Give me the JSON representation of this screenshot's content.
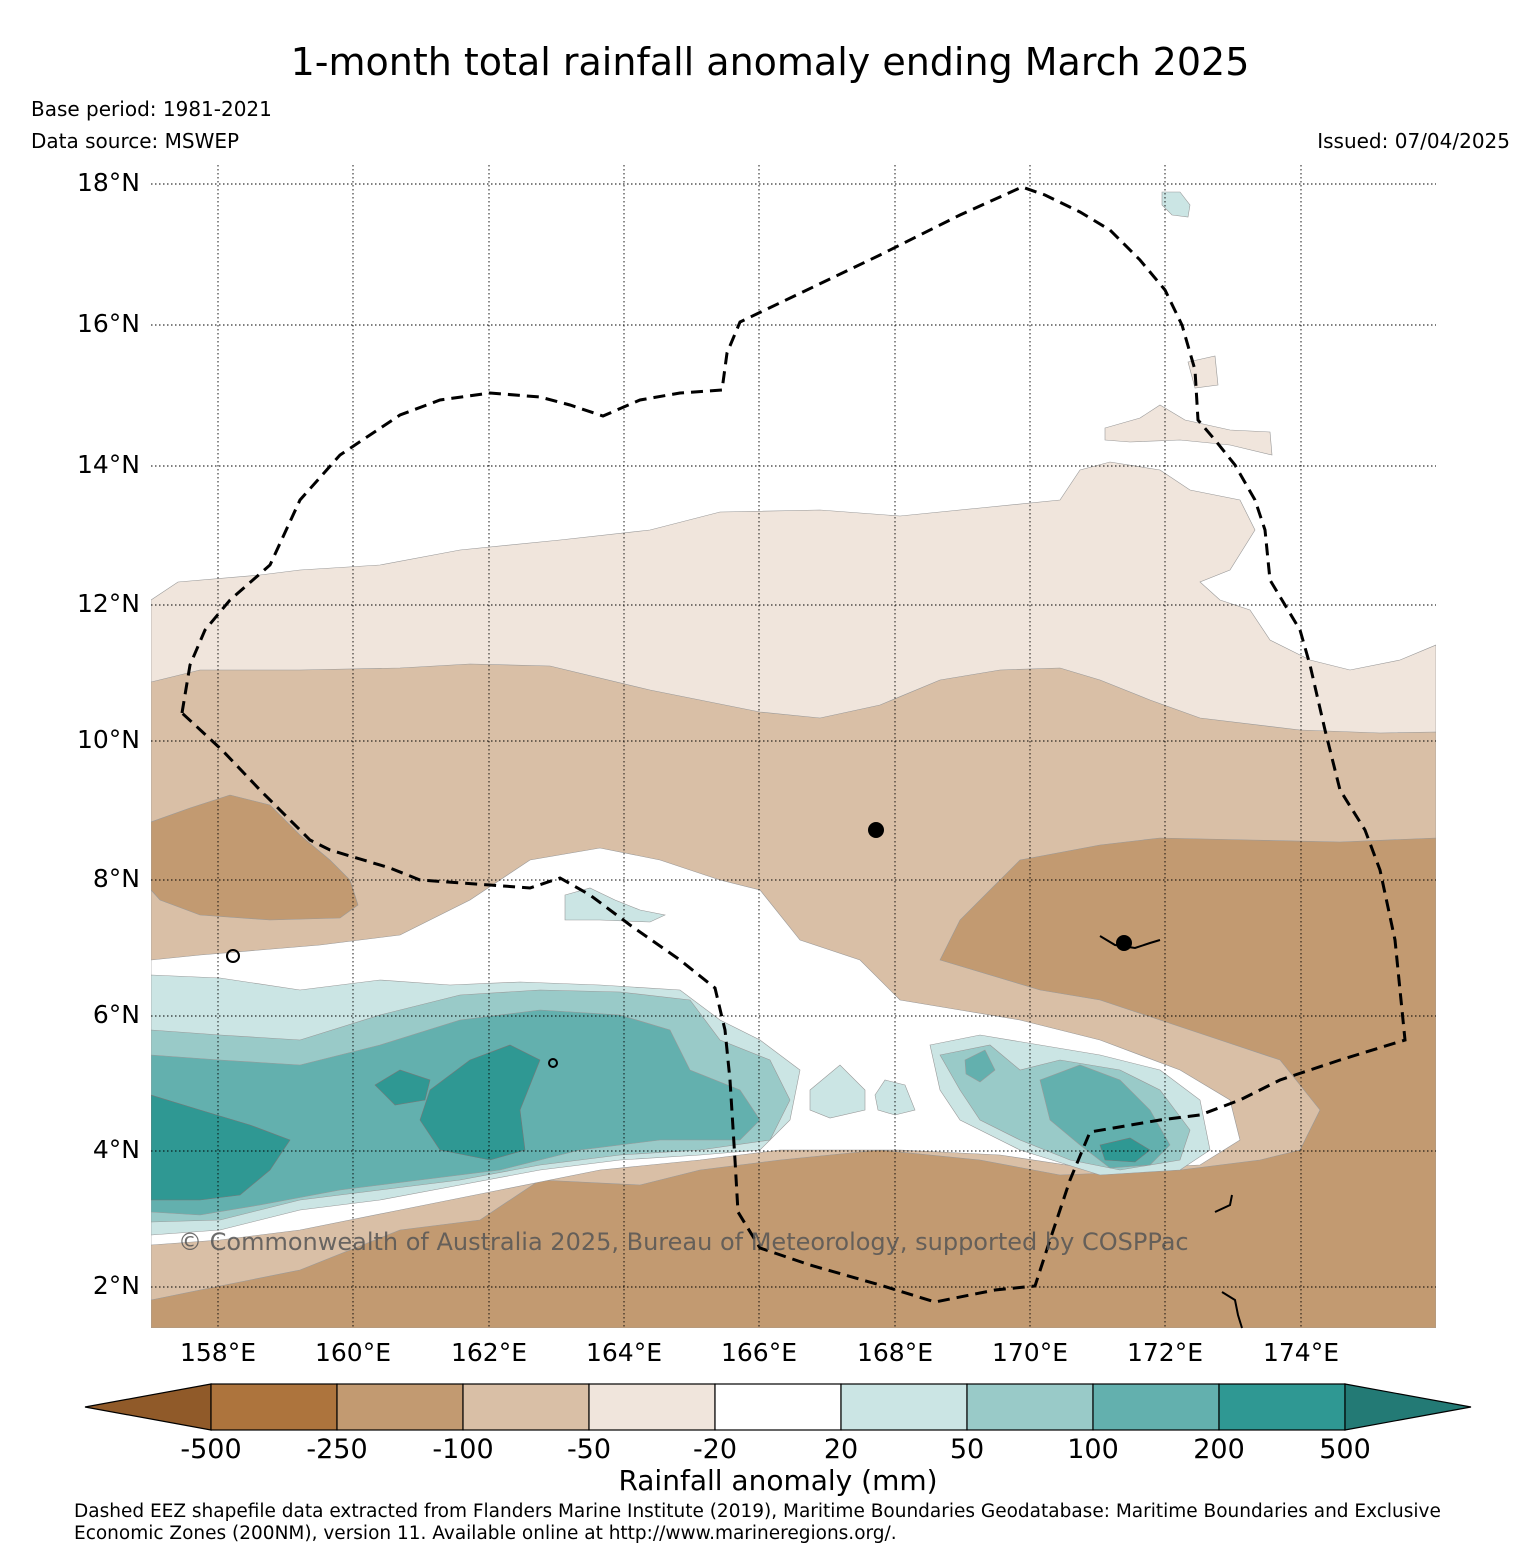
{
  "title": "1-month total rainfall anomaly ending March 2025",
  "meta": {
    "base_period": "Base period: 1981-2021",
    "data_source": "Data source: MSWEP",
    "issued": "Issued: 07/04/2025"
  },
  "map": {
    "lat_labels": [
      "18°N",
      "16°N",
      "14°N",
      "12°N",
      "10°N",
      "8°N",
      "6°N",
      "4°N",
      "2°N"
    ],
    "lon_labels": [
      "158°E",
      "160°E",
      "162°E",
      "164°E",
      "166°E",
      "168°E",
      "170°E",
      "172°E",
      "174°E"
    ],
    "copyright": "© Commonwealth of Australia 2025, Bureau of Meteorology, supported by COSPPac",
    "grid": "dotted",
    "eez_boundary": "dashed"
  },
  "colorbar": {
    "title": "Rainfall anomaly (mm)",
    "ticks": [
      "-500",
      "-250",
      "-100",
      "-50",
      "-20",
      "20",
      "50",
      "100",
      "200",
      "500"
    ],
    "colors": [
      "#905a29",
      "#ad743d",
      "#c29a71",
      "#d9bfa6",
      "#f0e5dc",
      "#ffffff",
      "#cbe5e4",
      "#99cac8",
      "#63b0ae",
      "#2f9893",
      "#237a75"
    ]
  },
  "footnote": "Dashed EEZ shapefile data extracted from Flanders Marine Institute (2019), Maritime Boundaries Geodatabase: Maritime Boundaries and Exclusive Economic Zones (200NM), version 11. Available online at http://www.marineregions.org/."
}
